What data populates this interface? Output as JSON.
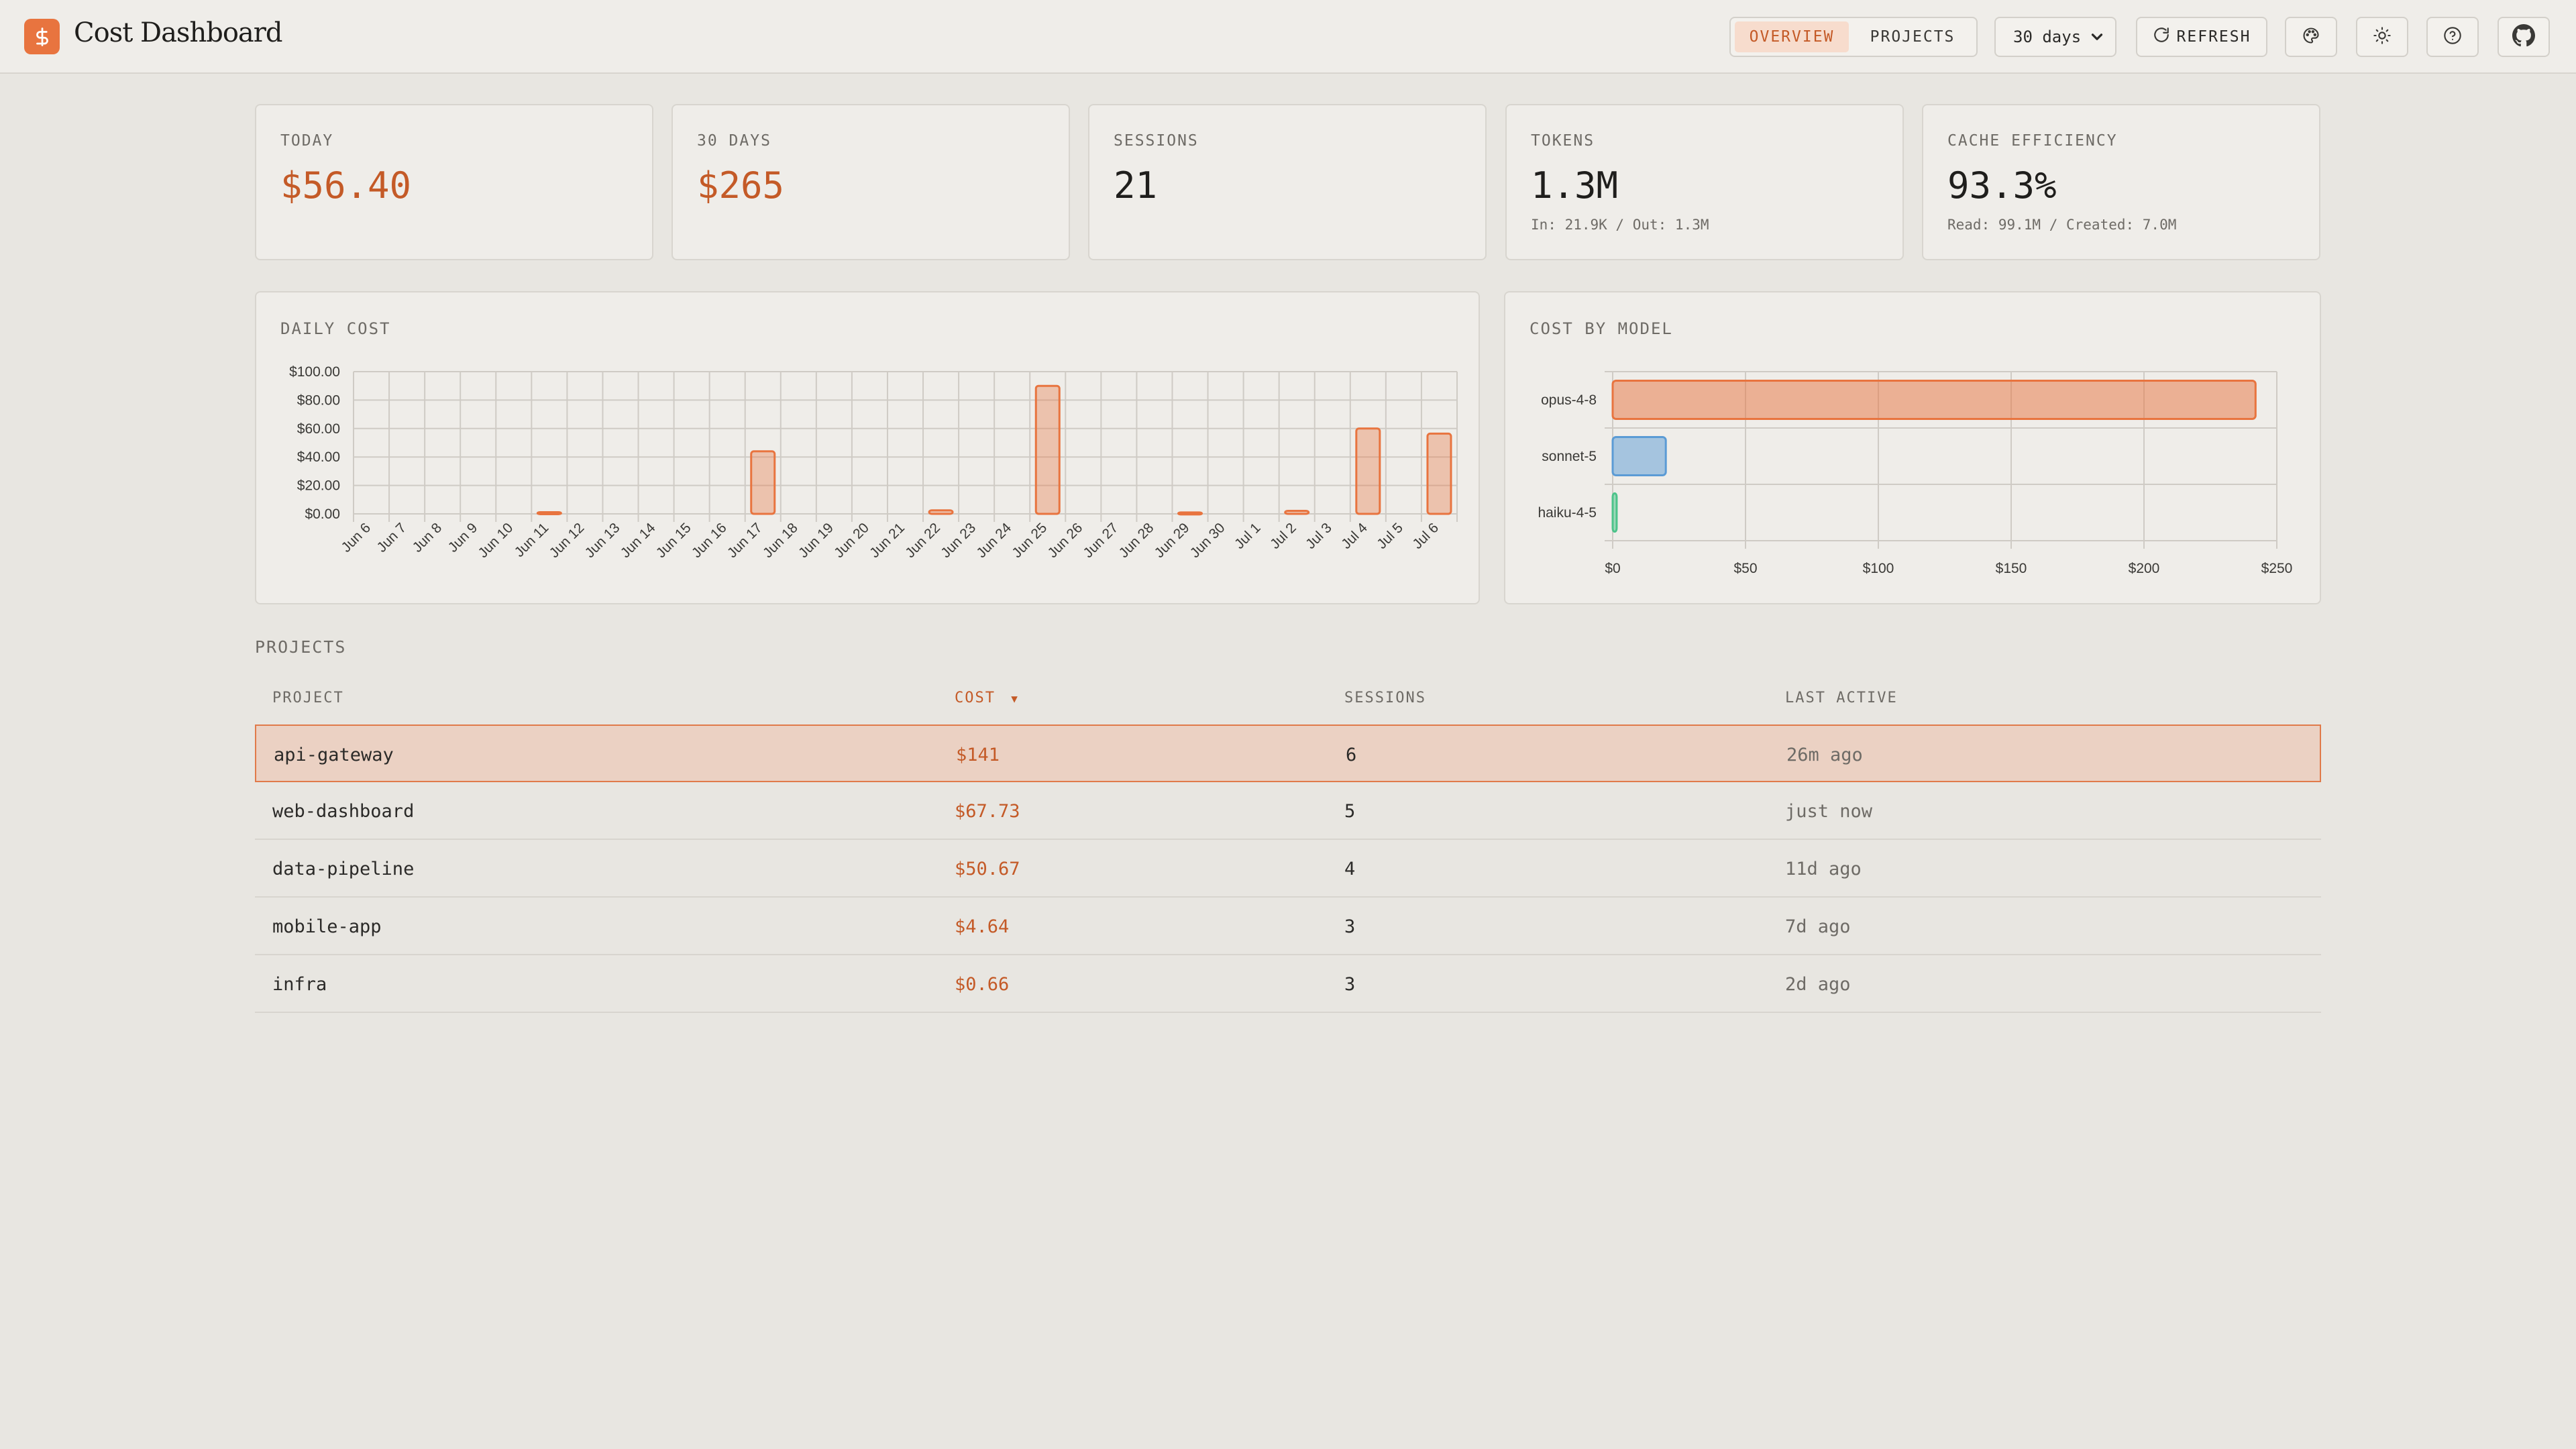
{
  "header": {
    "title": "Cost Dashboard",
    "logo_glyph": "$",
    "views": [
      "OVERVIEW",
      "PROJECTS"
    ],
    "active_view": "OVERVIEW",
    "range": "30 days",
    "refresh_label": "REFRESH",
    "icons": [
      "palette-icon",
      "sun-icon",
      "help-icon",
      "github-icon"
    ]
  },
  "stats": {
    "today": {
      "label": "TODAY",
      "value": "$56.40"
    },
    "days30": {
      "label": "30 DAYS",
      "value": "$265"
    },
    "sessions": {
      "label": "SESSIONS",
      "value": "21"
    },
    "tokens": {
      "label": "TOKENS",
      "value": "1.3M",
      "sub": "In: 21.9K / Out: 1.3M"
    },
    "cache": {
      "label": "CACHE EFFICIENCY",
      "value": "93.3%",
      "sub": "Read: 99.1M / Created: 7.0M"
    }
  },
  "chart_data": [
    {
      "type": "bar",
      "title": "DAILY COST",
      "categories": [
        "Jun 6",
        "Jun 7",
        "Jun 8",
        "Jun 9",
        "Jun 10",
        "Jun 11",
        "Jun 12",
        "Jun 13",
        "Jun 14",
        "Jun 15",
        "Jun 16",
        "Jun 17",
        "Jun 18",
        "Jun 19",
        "Jun 20",
        "Jun 21",
        "Jun 22",
        "Jun 23",
        "Jun 24",
        "Jun 25",
        "Jun 26",
        "Jun 27",
        "Jun 28",
        "Jun 29",
        "Jun 30",
        "Jul 1",
        "Jul 2",
        "Jul 3",
        "Jul 4",
        "Jul 5",
        "Jul 6"
      ],
      "values": [
        0,
        0,
        0,
        0,
        0,
        1.2,
        0,
        0,
        0,
        0,
        0,
        44,
        0,
        0,
        0,
        0,
        2.5,
        0,
        0,
        90,
        0,
        0,
        0,
        1,
        0,
        0,
        2.1,
        0,
        60,
        0,
        56.4
      ],
      "yticks": [
        "$0.00",
        "$20.00",
        "$40.00",
        "$60.00",
        "$80.00",
        "$100.00"
      ],
      "ylim": [
        0,
        100
      ],
      "grid": true,
      "color": "#e8743f"
    },
    {
      "type": "bar",
      "orientation": "horizontal",
      "title": "COST BY MODEL",
      "categories": [
        "opus-4-8",
        "sonnet-5",
        "haiku-4-5"
      ],
      "values": [
        242,
        20,
        1.5
      ],
      "colors": [
        "#e8743f",
        "#5b9bd5",
        "#4cc38a"
      ],
      "xticks": [
        "$0",
        "$50",
        "$100",
        "$150",
        "$200",
        "$250"
      ],
      "xlim": [
        0,
        250
      ],
      "grid": true
    }
  ],
  "projects": {
    "title": "PROJECTS",
    "columns": [
      "PROJECT",
      "COST",
      "SESSIONS",
      "LAST ACTIVE"
    ],
    "sort_indicator": "▼",
    "rows": [
      {
        "project": "api-gateway",
        "cost": "$141",
        "sessions": "6",
        "last_active": "26m ago",
        "selected": true
      },
      {
        "project": "web-dashboard",
        "cost": "$67.73",
        "sessions": "5",
        "last_active": "just now"
      },
      {
        "project": "data-pipeline",
        "cost": "$50.67",
        "sessions": "4",
        "last_active": "11d ago"
      },
      {
        "project": "mobile-app",
        "cost": "$4.64",
        "sessions": "3",
        "last_active": "7d ago"
      },
      {
        "project": "infra",
        "cost": "$0.66",
        "sessions": "3",
        "last_active": "2d ago"
      }
    ]
  }
}
